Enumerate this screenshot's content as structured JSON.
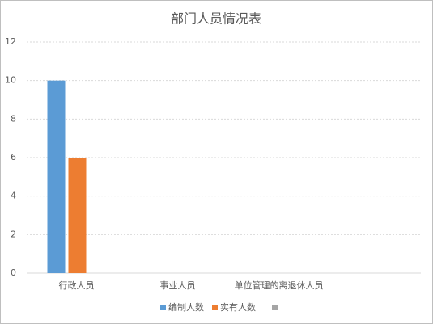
{
  "chart_data": {
    "type": "bar",
    "title": "部门人员情况表",
    "categories": [
      "行政人员",
      "事业人员",
      "单位管理的离退休人员"
    ],
    "series": [
      {
        "name": "编制人数",
        "color": "#5b9bd5",
        "values": [
          10,
          0,
          0
        ]
      },
      {
        "name": "实有人数",
        "color": "#ed7d31",
        "values": [
          6,
          0,
          0
        ]
      }
    ],
    "ylim": [
      0,
      12
    ],
    "yticks": [
      0,
      2,
      4,
      6,
      8,
      10,
      12
    ],
    "grid": true,
    "legend": "bottom"
  }
}
